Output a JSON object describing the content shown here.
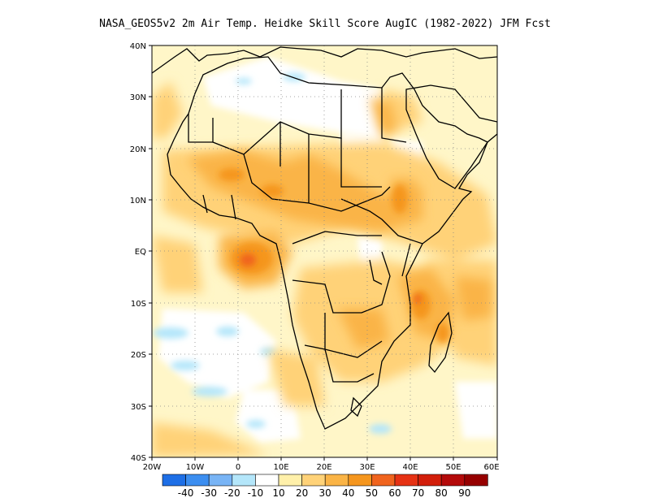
{
  "title": "NASA_GEOS5v2  2m Air Temp. Heidke Skill Score AugIC (1982-2022) JFM Fcst",
  "map": {
    "lon_range": [
      -20,
      60
    ],
    "lat_range": [
      -40,
      40
    ],
    "lon_ticks": [
      "20W",
      "10W",
      "0",
      "10E",
      "20E",
      "30E",
      "40E",
      "50E",
      "60E"
    ],
    "lat_ticks": [
      "40N",
      "30N",
      "20N",
      "10N",
      "EQ",
      "10S",
      "20S",
      "30S",
      "40S"
    ]
  },
  "colorbar": {
    "labels": [
      "-40",
      "-30",
      "-20",
      "-10",
      "10",
      "20",
      "30",
      "40",
      "50",
      "60",
      "70",
      "80",
      "90"
    ],
    "colors": [
      "#1e6fe6",
      "#3c8ef0",
      "#78b4f5",
      "#b4e6fa",
      "#ffffff",
      "#fff0aa",
      "#ffd278",
      "#fab446",
      "#f5961e",
      "#f0641e",
      "#e63214",
      "#d21e0a",
      "#b40a0a",
      "#960000"
    ]
  }
}
